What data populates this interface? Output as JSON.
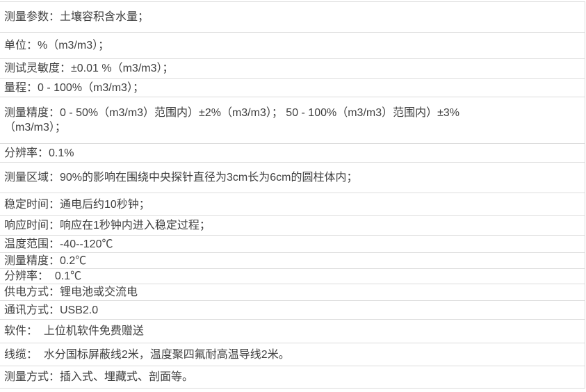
{
  "colors": {
    "background": "#ffffff",
    "border": "#dcdcdc",
    "text": "#404040"
  },
  "spec_table": {
    "rows": [
      {
        "text": "测量参数：土壤容积含水量；"
      },
      {
        "text": "单位：%（m3/m3）；"
      },
      {
        "text": "测试灵敏度：±0.01 %（m3/m3）；"
      },
      {
        "text": "量程：0 - 100%（m3/m3）；"
      },
      {
        "text": "测量精度：0 - 50%（m3/m3）范围内）±2%（m3/m3）； 50 - 100%（m3/m3）范围内）±3%\n（m3/m3）；"
      },
      {
        "text": "分辨率：0.1%"
      },
      {
        "text": "测量区域：90%的影响在围绕中央探针直径为3cm长为6cm的圆柱体内；"
      },
      {
        "text": "稳定时间：通电后约10秒钟；"
      },
      {
        "text": "响应时间：响应在1秒钟内进入稳定过程；"
      },
      {
        "text": "温度范围：-40--120℃"
      },
      {
        "text": "测量精度：0.2℃"
      },
      {
        "text": "分辨率：  0.1℃"
      },
      {
        "text": "供电方式：锂电池或交流电"
      },
      {
        "text": "通讯方式：USB2.0"
      },
      {
        "text": "软件：  上位机软件免费赠送"
      },
      {
        "text": "线缆：  水分国标屏蔽线2米，温度聚四氟耐高温导线2米。"
      },
      {
        "text": "测量方式：插入式、埋藏式、剖面等。"
      }
    ]
  }
}
